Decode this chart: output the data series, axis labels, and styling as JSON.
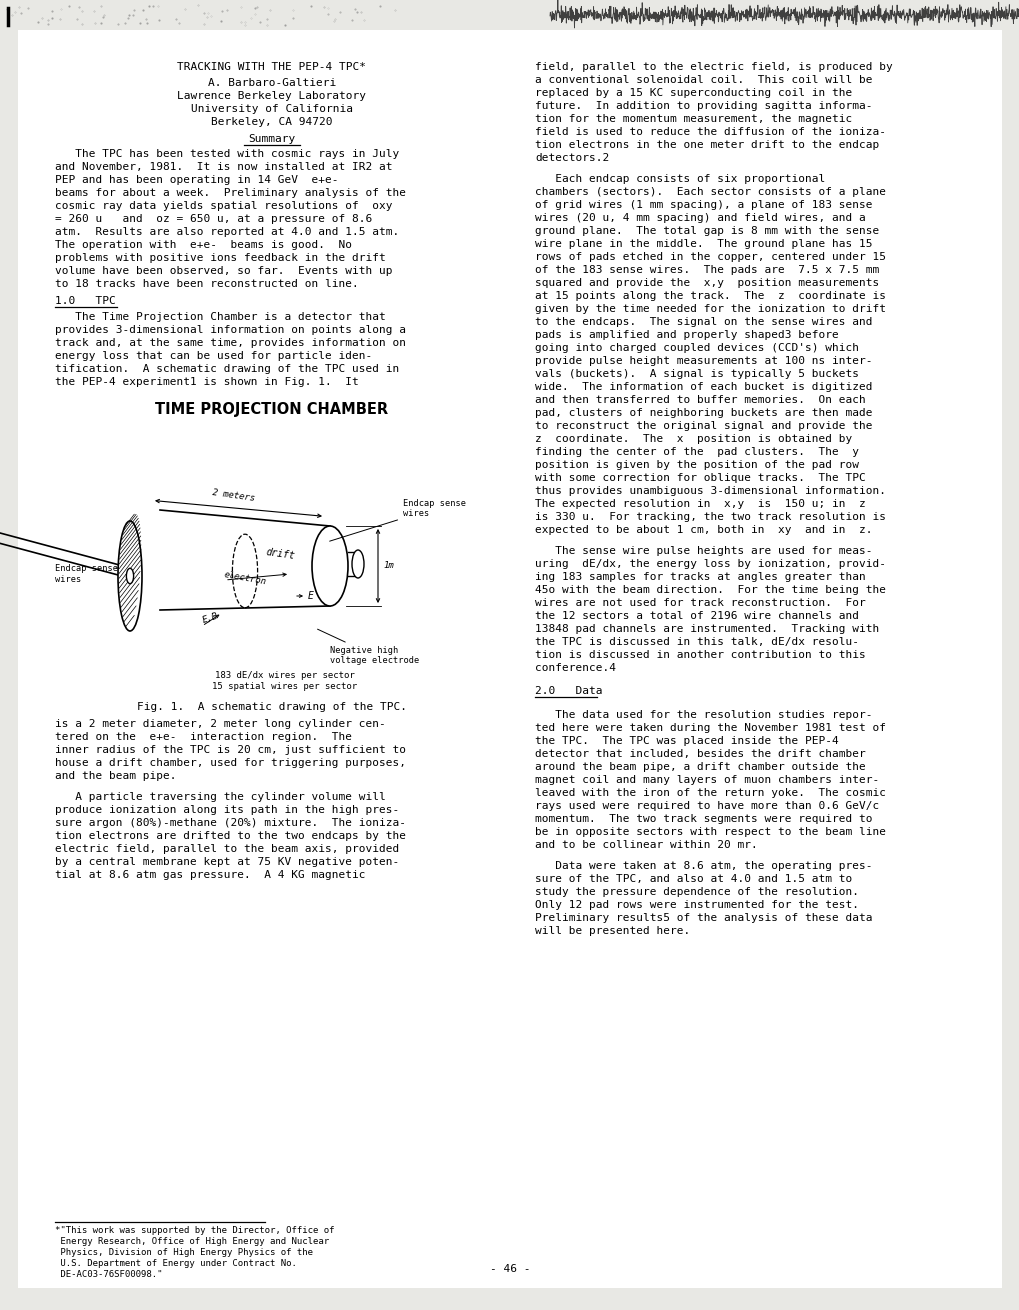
{
  "background_color": "#e8e8e4",
  "page_bg": "#ffffff",
  "text_color": "#000000",
  "title_line": "TRACKING WITH THE PEP-4 TPC*",
  "author_lines": [
    "A. Barbaro-Galtieri",
    "Lawrence Berkeley Laboratory",
    "University of California",
    "Berkeley, CA 94720"
  ],
  "summary_heading": "Summary",
  "left_col_text": [
    "   The TPC has been tested with cosmic rays in July",
    "and November, 1981.  It is now installed at IR2 at",
    "PEP and has been operating in 14 GeV  e+e-",
    "beams for about a week.  Preliminary analysis of the",
    "cosmic ray data yields spatial resolutions of  oxy",
    "= 260 u   and  oz = 650 u, at a pressure of 8.6",
    "atm.  Results are also reported at 4.0 and 1.5 atm.",
    "The operation with  e+e-  beams is good.  No",
    "problems with positive ions feedback in the drift",
    "volume have been observed, so far.  Events with up",
    "to 18 tracks have been reconstructed on line."
  ],
  "section1_head": "1.0   TPC",
  "left_col_text_b": [
    "   The Time Projection Chamber is a detector that",
    "provides 3-dimensional information on points along a",
    "track and, at the same time, provides information on",
    "energy loss that can be used for particle iden-",
    "tification.  A schematic drawing of the TPC used in",
    "the PEP-4 experiment1 is shown in Fig. 1.  It"
  ],
  "diagram_title": "TIME PROJECTION CHAMBER",
  "fig_caption": "Fig. 1.  A schematic drawing of the TPC.",
  "left_col_text2": [
    "is a 2 meter diameter, 2 meter long cylinder cen-",
    "tered on the  e+e-  interaction region.  The",
    "inner radius of the TPC is 20 cm, just sufficient to",
    "house a drift chamber, used for triggering purposes,",
    "and the beam pipe.",
    "",
    "   A particle traversing the cylinder volume will",
    "produce ionization along its path in the high pres-",
    "sure argon (80%)-methane (20%) mixture.  The ioniza-",
    "tion electrons are drifted to the two endcaps by the",
    "electric field, parallel to the beam axis, provided",
    "by a central membrane kept at 75 KV negative poten-",
    "tial at 8.6 atm gas pressure.  A 4 KG magnetic"
  ],
  "right_col_text": [
    "field, parallel to the electric field, is produced by",
    "a conventional solenoidal coil.  This coil will be",
    "replaced by a 15 KC superconducting coil in the",
    "future.  In addition to providing sagitta informa-",
    "tion for the momentum measurement, the magnetic",
    "field is used to reduce the diffusion of the ioniza-",
    "tion electrons in the one meter drift to the endcap",
    "detectors.2",
    "",
    "   Each endcap consists of six proportional",
    "chambers (sectors).  Each sector consists of a plane",
    "of grid wires (1 mm spacing), a plane of 183 sense",
    "wires (20 u, 4 mm spacing) and field wires, and a",
    "ground plane.  The total gap is 8 mm with the sense",
    "wire plane in the middle.  The ground plane has 15",
    "rows of pads etched in the copper, centered under 15",
    "of the 183 sense wires.  The pads are  7.5 x 7.5 mm",
    "squared and provide the  x,y  position measurements",
    "at 15 points along the track.  The  z  coordinate is",
    "given by the time needed for the ionization to drift",
    "to the endcaps.  The signal on the sense wires and",
    "pads is amplified and properly shaped3 before",
    "going into charged coupled devices (CCD's) which",
    "provide pulse height measurements at 100 ns inter-",
    "vals (buckets).  A signal is typically 5 buckets",
    "wide.  The information of each bucket is digitized",
    "and then transferred to buffer memories.  On each",
    "pad, clusters of neighboring buckets are then made",
    "to reconstruct the original signal and provide the",
    "z  coordinate.  The  x  position is obtained by",
    "finding the center of the  pad clusters.  The  y",
    "position is given by the position of the pad row",
    "with some correction for oblique tracks.  The TPC",
    "thus provides unambiguous 3-dimensional information.",
    "The expected resolution in  x,y  is  150 u; in  z",
    "is 330 u.  For tracking, the two track resolution is",
    "expected to be about 1 cm, both in  xy  and in  z.",
    "",
    "   The sense wire pulse heights are used for meas-",
    "uring  dE/dx, the energy loss by ionization, provid-",
    "ing 183 samples for tracks at angles greater than",
    "45o with the beam direction.  For the time being the",
    "wires are not used for track reconstruction.  For",
    "the 12 sectors a total of 2196 wire channels and",
    "13848 pad channels are instrumented.  Tracking with",
    "the TPC is discussed in this talk, dE/dx resolu-",
    "tion is discussed in another contribution to this",
    "conference.4",
    "",
    "2.0   Data",
    "",
    "   The data used for the resolution studies repor-",
    "ted here were taken during the November 1981 test of",
    "the TPC.  The TPC was placed inside the PEP-4",
    "detector that included, besides the drift chamber",
    "around the beam pipe, a drift chamber outside the",
    "magnet coil and many layers of muon chambers inter-",
    "leaved with the iron of the return yoke.  The cosmic",
    "rays used were required to have more than 0.6 GeV/c",
    "momentum.  The two track segments were required to",
    "be in opposite sectors with respect to the beam line",
    "and to be collinear within 20 mr.",
    "",
    "   Data were taken at 8.6 atm, the operating pres-",
    "sure of the TPC, and also at 4.0 and 1.5 atm to",
    "study the pressure dependence of the resolution.",
    "Only 12 pad rows were instrumented for the test.",
    "Preliminary results5 of the analysis of these data",
    "will be presented here."
  ],
  "footnote_text": [
    "*\"This work was supported by the Director, Office of",
    " Energy Research, Office of High Energy and Nuclear",
    " Physics, Division of High Energy Physics of the",
    " U.S. Department of Energy under Contract No.",
    " DE-AC03-76SF00098.\""
  ],
  "page_number": "- 46 -"
}
